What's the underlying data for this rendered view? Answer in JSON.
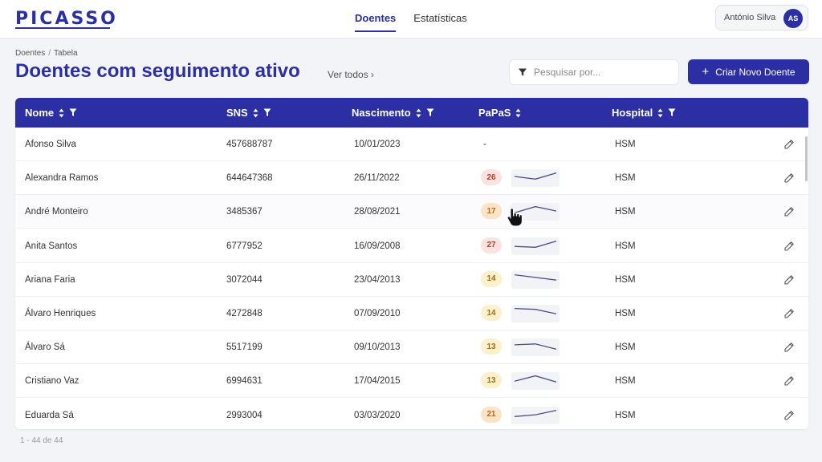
{
  "app": {
    "logo": "PICASSO"
  },
  "nav": [
    {
      "label": "Doentes",
      "active": true
    },
    {
      "label": "Estatísticas",
      "active": false
    }
  ],
  "user": {
    "name": "António Silva",
    "initials": "AS"
  },
  "breadcrumb": [
    "Doentes",
    "Tabela"
  ],
  "page": {
    "title": "Doentes com seguimento ativo",
    "see_all": "Ver todos ›"
  },
  "search": {
    "placeholder": "Pesquisar por..."
  },
  "actions": {
    "create": "Criar Novo Doente"
  },
  "table": {
    "columns": [
      {
        "label": "Nome",
        "sortable": true,
        "filterable": true
      },
      {
        "label": "SNS",
        "sortable": true,
        "filterable": true
      },
      {
        "label": "Nascimento",
        "sortable": true,
        "filterable": true
      },
      {
        "label": "PaPaS",
        "sortable": true,
        "filterable": false
      },
      {
        "label": "Hospital",
        "sortable": true,
        "filterable": true
      }
    ],
    "rows": [
      {
        "name": "Afonso Silva",
        "sns": "457688787",
        "birth": "10/01/2023",
        "papas": "-",
        "hospital": "HSM"
      },
      {
        "name": "Alexandra Ramos",
        "sns": "644647368",
        "birth": "26/11/2022",
        "papas": "26",
        "level": "high",
        "trend": [
          10,
          7,
          14
        ],
        "hospital": "HSM"
      },
      {
        "name": "André Monteiro",
        "sns": "3485367",
        "birth": "28/08/2021",
        "papas": "17",
        "level": "mid",
        "trend": [
          7,
          14,
          9
        ],
        "hospital": "HSM"
      },
      {
        "name": "Anita Santos",
        "sns": "6777952",
        "birth": "16/09/2008",
        "papas": "27",
        "level": "high",
        "trend": [
          8,
          7,
          14
        ],
        "hospital": "HSM"
      },
      {
        "name": "Ariana Faria",
        "sns": "3072044",
        "birth": "23/04/2013",
        "papas": "14",
        "level": "low",
        "trend": [
          14,
          11,
          8
        ],
        "hospital": "HSM"
      },
      {
        "name": "Álvaro Henriques",
        "sns": "4272848",
        "birth": "07/09/2010",
        "papas": "14",
        "level": "low",
        "trend": [
          14,
          13,
          8
        ],
        "hospital": "HSM"
      },
      {
        "name": "Álvaro Sá",
        "sns": "5517199",
        "birth": "09/10/2013",
        "papas": "13",
        "level": "low",
        "trend": [
          11,
          12,
          6
        ],
        "hospital": "HSM"
      },
      {
        "name": "Cristiano Vaz",
        "sns": "6994631",
        "birth": "17/04/2015",
        "papas": "13",
        "level": "low",
        "trend": [
          8,
          14,
          7
        ],
        "hospital": "HSM"
      },
      {
        "name": "Eduarda Sá",
        "sns": "2993004",
        "birth": "03/03/2020",
        "papas": "21",
        "level": "mid",
        "trend": [
          7,
          9,
          14
        ],
        "hospital": "HSM"
      }
    ]
  },
  "pagination": "1 - 44 de 44",
  "colors": {
    "brand": "#2b2fa3",
    "badge_high_bg": "#fde2e2",
    "badge_high_fg": "#c0392b",
    "badge_mid_bg": "#fde3c8",
    "badge_mid_fg": "#c0651b",
    "badge_low_bg": "#fdf0cc",
    "badge_low_fg": "#a06d10",
    "spark_line": "#4a4d8c"
  },
  "icons": {
    "filter": "funnel-icon",
    "sort": "sort-arrows-icon",
    "edit": "pencil-icon",
    "add": "plus-icon"
  }
}
